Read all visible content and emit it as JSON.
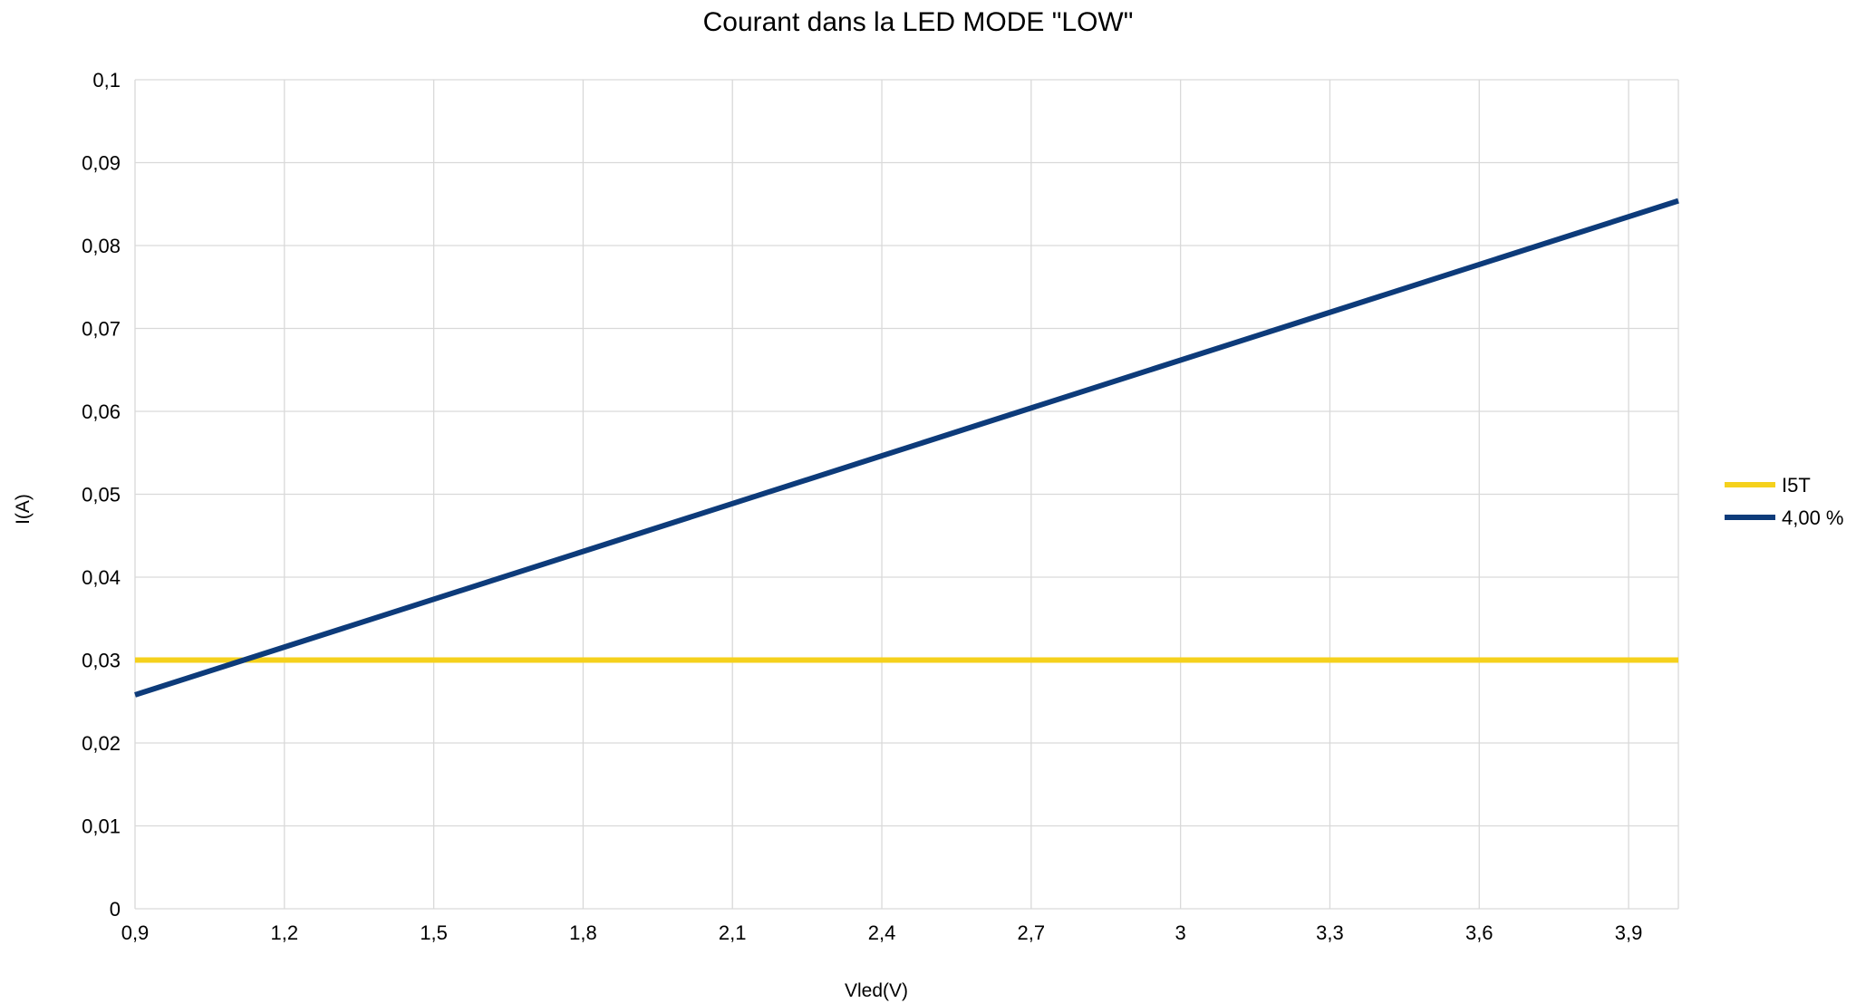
{
  "chart_data": {
    "type": "line",
    "title": "Courant dans la LED MODE \"LOW\"",
    "xlabel": "Vled(V)",
    "ylabel": "I(A)",
    "xlim": [
      0.9,
      4.0
    ],
    "ylim": [
      0,
      0.1
    ],
    "x_ticks": [
      0.9,
      1.2,
      1.5,
      1.8,
      2.1,
      2.4,
      2.7,
      3.0,
      3.3,
      3.6,
      3.9
    ],
    "x_tick_labels": [
      "0,9",
      "1,2",
      "1,5",
      "1,8",
      "2,1",
      "2,4",
      "2,7",
      "3",
      "3,3",
      "3,6",
      "3,9"
    ],
    "y_ticks": [
      0,
      0.01,
      0.02,
      0.03,
      0.04,
      0.05,
      0.06,
      0.07,
      0.08,
      0.09,
      0.1
    ],
    "y_tick_labels": [
      "0",
      "0,01",
      "0,02",
      "0,03",
      "0,04",
      "0,05",
      "0,06",
      "0,07",
      "0,08",
      "0,09",
      "0,1"
    ],
    "grid": true,
    "legend_position": "right",
    "series": [
      {
        "name": "I5T",
        "color": "#f5d11c",
        "x": [
          0.9,
          4.0
        ],
        "y": [
          0.03,
          0.03
        ]
      },
      {
        "name": "4,00 %",
        "color": "#0d3b7a",
        "x": [
          0.9,
          4.0
        ],
        "y": [
          0.0258,
          0.0854
        ]
      }
    ]
  }
}
